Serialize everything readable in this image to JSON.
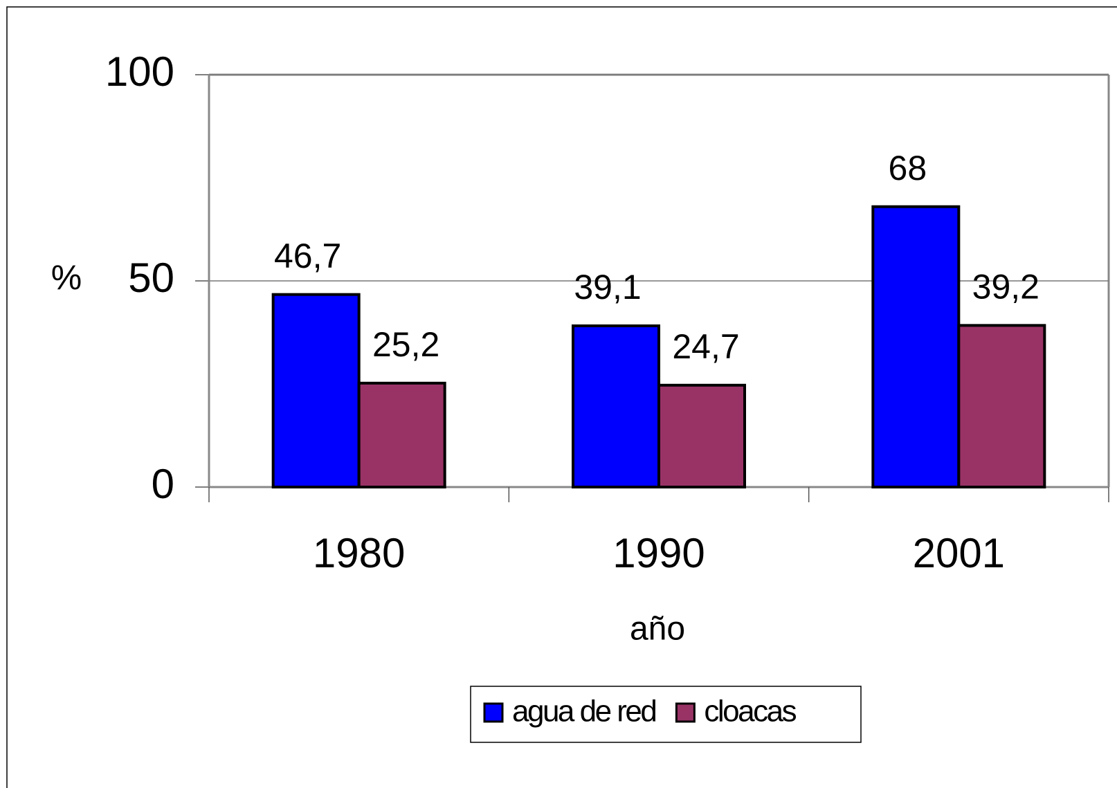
{
  "chart_data": {
    "type": "bar",
    "categories": [
      "1980",
      "1990",
      "2001"
    ],
    "series": [
      {
        "name": "agua de red",
        "color": "#0000ff",
        "values": [
          46.7,
          39.1,
          68
        ],
        "value_labels": [
          "46,7",
          "39,1",
          "68"
        ]
      },
      {
        "name": "cloacas",
        "color": "#993366",
        "values": [
          25.2,
          24.7,
          39.2
        ],
        "value_labels": [
          "25,2",
          "24,7",
          "39,2"
        ]
      }
    ],
    "y_label": "%",
    "x_label": "año",
    "ylim": [
      0,
      100
    ],
    "yticks": [
      0,
      50,
      100
    ],
    "grid": true,
    "legend": "bottom"
  }
}
